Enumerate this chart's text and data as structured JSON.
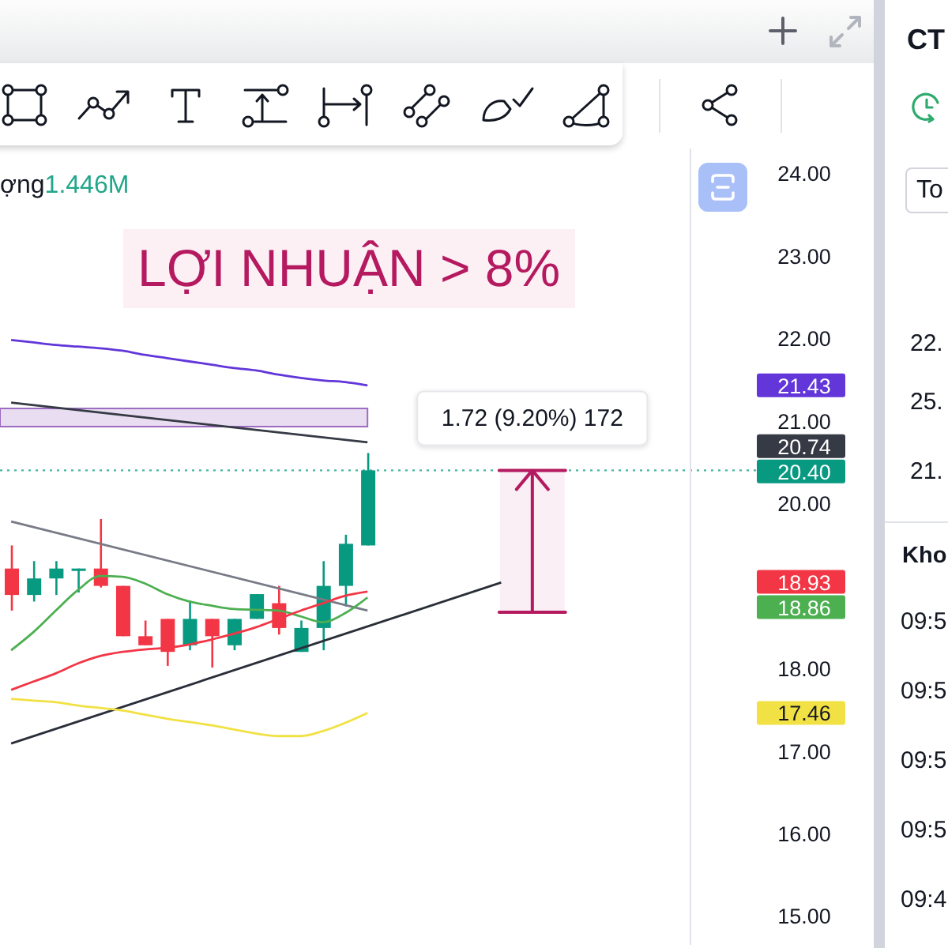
{
  "chart_data": {
    "type": "candlestick",
    "title": "LỢI NHUẬN > 8%",
    "categories": [
      null,
      null,
      null,
      null,
      null,
      null,
      null,
      null,
      null,
      null,
      null,
      null,
      null,
      null,
      null,
      null,
      null,
      null,
      null,
      null,
      null,
      null,
      null,
      null,
      null,
      null,
      null,
      null,
      null,
      null,
      null
    ],
    "ohlc": [
      [
        19.21,
        19.49,
        18.7,
        18.89
      ],
      [
        18.89,
        19.3,
        18.81,
        19.09
      ],
      [
        19.09,
        19.3,
        18.89,
        19.21
      ],
      [
        19.21,
        19.21,
        18.92,
        19.21
      ],
      [
        19.21,
        19.81,
        18.98,
        19.0
      ],
      [
        19.0,
        19.0,
        18.39,
        18.39
      ],
      [
        18.39,
        18.58,
        18.28,
        18.28
      ],
      [
        18.6,
        18.6,
        18.03,
        18.2
      ],
      [
        18.28,
        18.82,
        18.22,
        18.6
      ],
      [
        18.6,
        18.6,
        18.01,
        18.39
      ],
      [
        18.28,
        18.6,
        18.22,
        18.6
      ],
      [
        18.6,
        18.9,
        18.6,
        18.9
      ],
      [
        18.79,
        19.0,
        18.41,
        18.49
      ],
      [
        18.2,
        18.58,
        18.2,
        18.49
      ],
      [
        18.49,
        19.3,
        18.22,
        19.0
      ],
      [
        19.0,
        19.62,
        18.75,
        19.51
      ],
      [
        19.49,
        20.61,
        19.49,
        20.4
      ],
      null,
      null,
      null,
      null,
      null,
      null,
      null,
      null,
      null,
      null,
      null,
      null,
      null,
      null
    ],
    "colors": [
      "#f23645",
      "#089981",
      "#089981",
      "#089981",
      "#f23645",
      "#f23645",
      "#f23645",
      "#f23645",
      "#089981",
      "#f23645",
      "#089981",
      "#089981",
      "#f23645",
      "#089981",
      "#089981",
      "#089981",
      "#089981",
      null,
      null,
      null,
      null,
      null,
      null,
      null,
      null,
      null,
      null,
      null,
      null,
      null,
      null
    ],
    "series": [
      {
        "type": "line",
        "color": "#6236d9",
        "values": [
          21.98,
          21.95,
          21.92,
          21.9,
          21.88,
          21.85,
          21.8,
          21.76,
          21.72,
          21.68,
          21.64,
          21.61,
          21.56,
          21.52,
          21.49,
          21.47,
          21.43,
          null,
          null,
          null,
          null,
          null,
          null,
          null,
          null,
          null,
          null,
          null,
          null,
          null,
          null
        ]
      },
      {
        "type": "line",
        "color": "#363a45",
        "values": [
          21.22,
          null,
          null,
          null,
          null,
          null,
          null,
          null,
          null,
          null,
          null,
          null,
          null,
          null,
          null,
          null,
          20.74,
          null,
          null,
          null,
          null,
          null,
          null,
          null,
          null,
          null,
          null,
          null,
          null,
          null,
          null
        ]
      },
      {
        "type": "line",
        "color": "#787b86",
        "values": [
          19.78,
          null,
          null,
          null,
          null,
          null,
          null,
          null,
          null,
          null,
          null,
          null,
          null,
          null,
          null,
          null,
          18.7,
          null,
          null,
          null,
          null,
          null,
          null,
          null,
          null,
          null,
          null,
          null,
          null,
          null,
          null
        ]
      },
      {
        "type": "line",
        "color": "#2a2e39",
        "values": [
          17.09,
          null,
          null,
          null,
          null,
          null,
          null,
          null,
          null,
          null,
          null,
          null,
          null,
          null,
          null,
          null,
          null,
          null,
          null,
          null,
          null,
          null,
          19.04,
          null,
          null,
          null,
          null,
          null,
          null,
          null,
          null
        ]
      },
      {
        "type": "line",
        "color": "#4caf50",
        "values": [
          18.22,
          18.44,
          18.7,
          18.95,
          19.12,
          19.11,
          19.03,
          18.9,
          18.81,
          18.76,
          18.72,
          18.71,
          18.7,
          18.63,
          18.56,
          18.67,
          18.86,
          null,
          null,
          null,
          null,
          null,
          null,
          null,
          null,
          null,
          null,
          null,
          null,
          null,
          null
        ]
      },
      {
        "type": "line",
        "color": "#f23645",
        "values": [
          17.74,
          17.84,
          17.94,
          18.06,
          18.15,
          18.2,
          18.23,
          18.25,
          18.29,
          18.35,
          18.42,
          18.5,
          18.6,
          18.7,
          18.79,
          18.88,
          18.93,
          null,
          null,
          null,
          null,
          null,
          null,
          null,
          null,
          null,
          null,
          null,
          null,
          null,
          null
        ]
      },
      {
        "type": "line",
        "color": "#f2e144",
        "values": [
          17.63,
          17.61,
          17.59,
          17.55,
          17.52,
          17.49,
          17.44,
          17.39,
          17.35,
          17.31,
          17.26,
          17.21,
          17.18,
          17.18,
          17.24,
          17.34,
          17.46,
          null,
          null,
          null,
          null,
          null,
          null,
          null,
          null,
          null,
          null,
          null,
          null,
          null,
          null
        ]
      }
    ],
    "ylim": [
      14.65,
      24.3
    ],
    "yticks": [
      {
        "value": 15,
        "label": "15.00"
      },
      {
        "value": 16,
        "label": "16.00"
      },
      {
        "value": 17,
        "label": "17.00"
      },
      {
        "value": 17.46,
        "label": "17.46"
      },
      {
        "value": 18,
        "label": "18.00"
      },
      {
        "value": 18.86,
        "label": "18.86"
      },
      {
        "value": 18.93,
        "label": "18.93"
      },
      {
        "value": 20,
        "label": "20.00"
      },
      {
        "value": 20.74,
        "label": "20.74"
      },
      {
        "value": 21,
        "label": "21.00"
      },
      {
        "value": 21.43,
        "label": "21.43"
      },
      {
        "value": 22,
        "label": "22.00"
      },
      {
        "value": 23,
        "label": "23.00"
      },
      {
        "value": 24,
        "label": "24.00"
      }
    ],
    "ref_lines": [
      {
        "axis": "y",
        "value": 20.4,
        "label": "20.40",
        "color": "#089981",
        "line_style": "dotted"
      }
    ],
    "bands": [
      {
        "axis": "y",
        "from": 20.93,
        "to": 21.15,
        "color": "#9c6bc0"
      },
      {
        "axis": "y",
        "from": 18.68,
        "to": 20.4,
        "label": "1.72 (9.20%) 172",
        "color": "#b5195f"
      }
    ],
    "annotations": [
      "ợng",
      "1.446M",
      "CT",
      "To",
      "22.",
      "25.",
      "21.",
      "Kho",
      "09:5",
      "09:5",
      "09:5",
      "09:5",
      "09:4"
    ]
  }
}
